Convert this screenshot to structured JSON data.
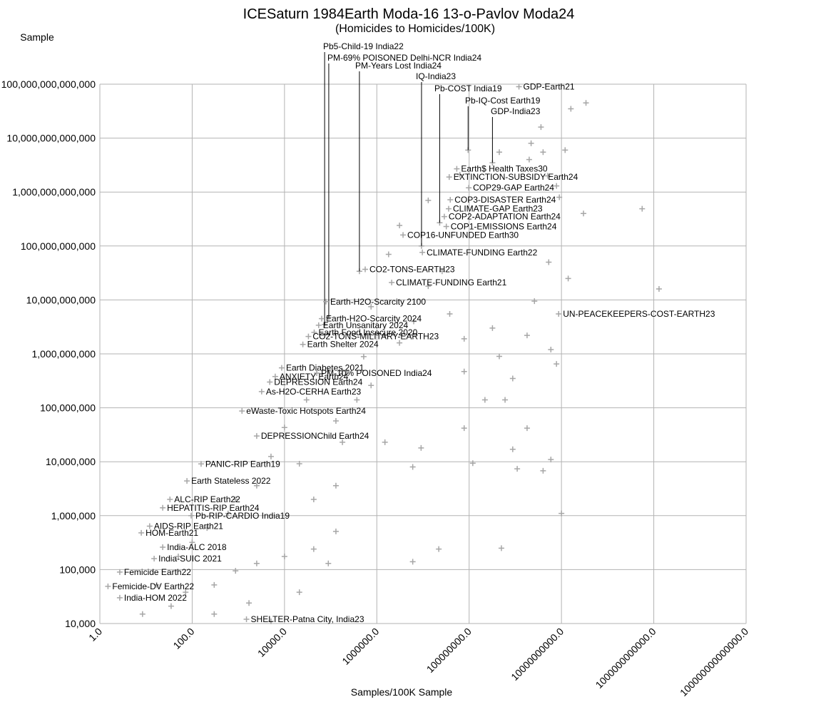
{
  "chart_data": {
    "type": "scatter",
    "title": "ICESaturn 1984Earth Moda-16 13-o-Pavlov Moda24",
    "subtitle": "(Homicides to Homicides/100K)",
    "x_label": "Samples/100K Sample",
    "y_label": "Sample",
    "log_x": true,
    "log_y": true,
    "grid": true,
    "color": "#a6a6a6",
    "xlim": [
      1,
      100000000000000.0
    ],
    "ylim": [
      10000.0,
      100000000000000.0
    ],
    "xticks": [
      {
        "value": 1,
        "label": "1.0"
      },
      {
        "value": 100,
        "label": "100.0"
      },
      {
        "value": 10000.0,
        "label": "10000.0"
      },
      {
        "value": 1000000.0,
        "label": "1000000.0"
      },
      {
        "value": 100000000.0,
        "label": "100000000.0"
      },
      {
        "value": 10000000000.0,
        "label": "10000000000.0"
      },
      {
        "value": 1000000000000.0,
        "label": "1000000000000.0"
      },
      {
        "value": 100000000000000.0,
        "label": "100000000000000.0"
      }
    ],
    "yticks": [
      {
        "value": 10000.0,
        "label": "10,000"
      },
      {
        "value": 100000.0,
        "label": "100,000"
      },
      {
        "value": 1000000.0,
        "label": "1,000,000"
      },
      {
        "value": 10000000.0,
        "label": "10,000,000"
      },
      {
        "value": 100000000.0,
        "label": "100,000,000"
      },
      {
        "value": 1000000000.0,
        "label": "1,000,000,000"
      },
      {
        "value": 10000000000.0,
        "label": "10,000,000,000"
      },
      {
        "value": 100000000000.0,
        "label": "100,000,000,000"
      },
      {
        "value": 1000000000000.0,
        "label": "1,000,000,000,000"
      },
      {
        "value": 10000000000000.0,
        "label": "10,000,000,000,000"
      },
      {
        "value": 100000000000000.0,
        "label": "100,000,000,000,000"
      }
    ],
    "series": [
      {
        "x": [
          34000000000.0,
          16000000000.0,
          3600000000.0,
          12000000000.0,
          2000000000.0,
          5000000000.0,
          9000000000.0,
          30000000000.0,
          560000000000.0,
          1300000000000.0,
          14000000000.0,
          5300000000.0,
          2600000000.0,
          1800000000.0,
          5900000000.0,
          7800000000.0,
          450000000.0,
          880000000.0,
          600000000.0,
          1800000000.0,
          880000000.0,
          4000000000.0,
          10000000000.0,
          5900000000.0,
          1100000000.0,
          120000000.0,
          6000000.0,
          1500000.0,
          9100000.0,
          78000000.0,
          220000000.0,
          78000000.0,
          320000000.0,
          78000000.0,
          38000000.0,
          3100000.0,
          6300000.0,
          13000000.0,
          26000000.0,
          1800000.0,
          3100000.0,
          13000000.0,
          63000000.0,
          450000000.0,
          2200000000.0,
          4000000000.0,
          7800000000.0,
          6000000.0,
          22000000.0,
          500000000.0,
          8.4,
          35,
          72,
          300,
          870,
          2500,
          10000.0,
          43000.0,
          89000.0,
          130000.0,
          43000.0,
          130000.0,
          21000.0,
          180000.0,
          130000.0,
          370000.0,
          750000.0,
          520000.0,
          180000.0,
          5100,
          870,
          210,
          50,
          17,
          300,
          1700,
          21000.0,
          5100,
          100,
          600,
          2500,
          10000.0,
          30000.0,
          89000.0,
          1500000.0,
          750000.0
        ],
        "y": [
          45000000000000.0,
          35000000000000.0,
          16000000000000.0,
          6000000000000.0,
          4000000000000.0,
          2000000000000.0,
          800000000000.0,
          400000000000.0,
          490000000000.0,
          16000000000.0,
          25000000000.0,
          50000000000.0,
          9500000000.0,
          2200000000.0,
          1200000000.0,
          650000000.0,
          900000000.0,
          350000000.0,
          140000000.0,
          42000000.0,
          17000000.0,
          6800000.0,
          1100000.0,
          11000000.0,
          7400000.0,
          9400000.0,
          8000000.0,
          23000000.0,
          18000000.0,
          42000000.0,
          140000000.0,
          470000000.0,
          3000000000.0,
          1900000000.0,
          5500000000.0,
          1600000000.0,
          4000000000.0,
          18000000000.0,
          34000000000.0,
          70000000000.0,
          240000000000.0,
          700000000000.0,
          2100000000000.0,
          5500000000000.0,
          8000000000000.0,
          5500000000000.0,
          1300000000000.0,
          140000.0,
          240000.0,
          250000.0,
          15000.0,
          21000.0,
          38000.0,
          52000.0,
          95000.0,
          130000.0,
          175000.0,
          240000.0,
          130000.0,
          510000.0,
          2000000.0,
          3600000.0,
          9200000.0,
          23000000.0,
          57000000.0,
          140000000.0,
          260000000.0,
          890000000.0,
          480000000.0,
          12500000.0,
          2000000.0,
          590000.0,
          175000.0,
          52000.0,
          15000.0,
          24000.0,
          38000.0,
          11000.0,
          320000.0,
          1100000.0,
          3600000.0,
          43000000.0,
          140000000.0,
          480000000.0,
          2200000000.0,
          7500000000.0
        ]
      }
    ],
    "annotations": [
      {
        "text": "Pb5-Child-19 India22",
        "x": 74000.0,
        "y": 3500000000.0
      },
      {
        "text": "PM-69% POISONED Delhi-NCR India24",
        "x": 91000.0,
        "y": 4700000000.0
      },
      {
        "text": "PM-Years Lost India24",
        "x": 420000.0,
        "y": 34000000000.0
      },
      {
        "text": "IQ-India23",
        "x": 9300000.0,
        "y": 100000000000.0
      },
      {
        "text": "Pb-COST India19",
        "x": 23000000.0,
        "y": 270000000000.0
      },
      {
        "text": "Pb-IQ-Cost Earth19",
        "x": 95000000.0,
        "y": 6000000000000.0
      },
      {
        "text": "GDP-India23",
        "x": 320000000.0,
        "y": 3500000000000.0
      },
      {
        "text": "GDP-Earth21",
        "x": 1200000000.0,
        "y": 90000000000000.0
      },
      {
        "text": "Earth$ Health Taxes30",
        "x": 54000000.0,
        "y": 2700000000000.0
      },
      {
        "text": "EXTINCTION-SUBSIDY Earth24",
        "x": 37000000.0,
        "y": 1900000000000.0
      },
      {
        "text": "COP29-GAP Earth24",
        "x": 98000000.0,
        "y": 1200000000000.0
      },
      {
        "text": "COP3-DISASTER Earth24",
        "x": 39000000.0,
        "y": 720000000000.0
      },
      {
        "text": "CLIMATE-GAP Earth23",
        "x": 36000000.0,
        "y": 490000000000.0
      },
      {
        "text": "COP2-ADAPTATION Earth24",
        "x": 29000000.0,
        "y": 350000000000.0
      },
      {
        "text": "COP1-EMISSIONS Earth24",
        "x": 32000000.0,
        "y": 230000000000.0
      },
      {
        "text": "COP16-UNFUNDED Earth30",
        "x": 3700000.0,
        "y": 160000000000.0
      },
      {
        "text": "CLIMATE-FUNDING Earth22",
        "x": 9700000.0,
        "y": 76000000000.0
      },
      {
        "text": "CO2-TONS-EARTH23",
        "x": 560000.0,
        "y": 37000000000.0
      },
      {
        "text": "CLIMATE-FUNDING Earth21",
        "x": 2100000.0,
        "y": 21000000000.0
      },
      {
        "text": "UN-PEACEKEEPERS-COST-EARTH23",
        "x": 8700000000.0,
        "y": 5500000000.0
      },
      {
        "text": "Earth-H2O-Scarcity 2100",
        "x": 79000.0,
        "y": 9300000000.0
      },
      {
        "text": "Earth-H2O-Scarcity 2024",
        "x": 64000.0,
        "y": 4500000000.0
      },
      {
        "text": "Earth Unsanitary 2024",
        "x": 55000.0,
        "y": 3400000000.0
      },
      {
        "text": "Earth Food Insecure 2020",
        "x": 44000.0,
        "y": 2500000000.0
      },
      {
        "text": "CO2-TONS-MILITARY-EARTH23",
        "x": 33000.0,
        "y": 2100000000.0
      },
      {
        "text": "Earth Shelter 2024",
        "x": 25000.0,
        "y": 1500000000.0
      },
      {
        "text": "Earth Diabetes 2021",
        "x": 8700.0,
        "y": 550000000.0
      },
      {
        "text": "PM-10% POISONED India24",
        "x": 50000.0,
        "y": 440000000.0
      },
      {
        "text": "ANXIETY Earth24",
        "x": 6300.0,
        "y": 380000000.0
      },
      {
        "text": "DEPRESSION Earth24",
        "x": 4800.0,
        "y": 300000000.0
      },
      {
        "text": "As-H2O-CERHA Earth23",
        "x": 3200.0,
        "y": 200000000.0
      },
      {
        "text": "eWaste-Toxic Hotspots Earth24",
        "x": 1200.0,
        "y": 87000000.0
      },
      {
        "text": "DEPRESSIONChild Earth24",
        "x": 2500.0,
        "y": 30000000.0
      },
      {
        "text": "PANIC-RIP Earth19",
        "x": 156,
        "y": 9100000.0
      },
      {
        "text": "Earth Stateless 2022",
        "x": 77,
        "y": 4400000.0
      },
      {
        "text": "ALC-RIP Earth22",
        "x": 33,
        "y": 2000000.0
      },
      {
        "text": "HEPATITIS-RIP Earth24",
        "x": 23,
        "y": 1400000.0
      },
      {
        "text": "Pb-RIP-CARDIO India19",
        "x": 95,
        "y": 1000000.0
      },
      {
        "text": "AIDS-RIP Earth21",
        "x": 12,
        "y": 640000.0
      },
      {
        "text": "HOM-Earth21",
        "x": 7.9,
        "y": 480000.0
      },
      {
        "text": "India-ALC 2018",
        "x": 23,
        "y": 260000.0
      },
      {
        "text": "India-SUIC 2021",
        "x": 15,
        "y": 160000.0
      },
      {
        "text": "Femicide Earth22",
        "x": 2.7,
        "y": 90000.0
      },
      {
        "text": "Femicide-DV Earth22",
        "x": 1.5,
        "y": 49000.0
      },
      {
        "text": "India-HOM 2022",
        "x": 2.7,
        "y": 30000.0
      },
      {
        "text": "SHELTER-Patna City, India23",
        "x": 1500.0,
        "y": 12000.0
      }
    ]
  }
}
